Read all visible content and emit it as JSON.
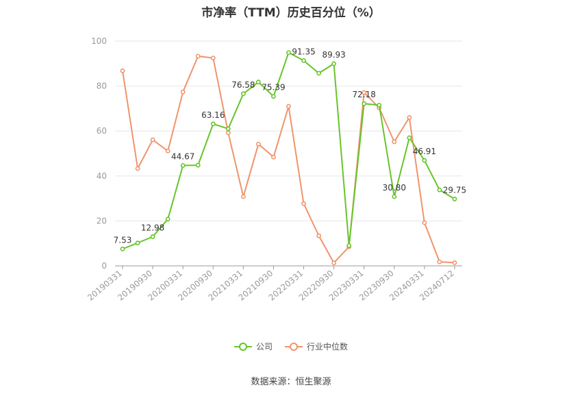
{
  "chart_data": {
    "type": "line",
    "title": "市净率（TTM）历史百分位（%）",
    "ylim": [
      0,
      100
    ],
    "yticks": [
      0,
      20,
      40,
      60,
      80,
      100
    ],
    "x": [
      "20190331",
      "20190630",
      "20190930",
      "20191231",
      "20200331",
      "20200630",
      "20200930",
      "20201231",
      "20210331",
      "20210630",
      "20210930",
      "20211231",
      "20220331",
      "20220630",
      "20220930",
      "20221231",
      "20230331",
      "20230630",
      "20230930",
      "20231231",
      "20240331",
      "20240630",
      "20240712"
    ],
    "xtick_labels": [
      "20190331",
      "20190930",
      "20200331",
      "20200930",
      "20210331",
      "20210930",
      "20220331",
      "20220930",
      "20230331",
      "20230930",
      "20240331",
      "20240712"
    ],
    "series": [
      {
        "name": "公司",
        "color": "#66c42a",
        "values": [
          7.53,
          10.2,
          12.98,
          20.8,
          44.67,
          44.8,
          63.16,
          61.0,
          76.58,
          81.8,
          75.39,
          94.9,
          91.35,
          85.7,
          89.93,
          9.0,
          72.18,
          71.5,
          30.8,
          57.0,
          46.91,
          33.8,
          29.75
        ],
        "labels": {
          "0": "7.53",
          "2": "12.98",
          "4": "44.67",
          "6": "63.16",
          "8": "76.58",
          "10": "75.39",
          "12": "91.35",
          "14": "89.93",
          "16": "72.18",
          "18": "30.80",
          "20": "46.91",
          "22": "29.75"
        }
      },
      {
        "name": "行业中位数",
        "color": "#f0936b",
        "values": [
          86.8,
          43.3,
          56.1,
          51.1,
          77.4,
          93.3,
          92.5,
          59.2,
          30.8,
          54.2,
          48.4,
          71.0,
          27.7,
          13.4,
          1.3,
          8.5,
          77.1,
          70.3,
          55.2,
          66.0,
          19.2,
          1.8,
          1.4
        ]
      }
    ]
  },
  "legend": [
    {
      "label": "公司",
      "color": "#66c42a"
    },
    {
      "label": "行业中位数",
      "color": "#f0936b"
    }
  ],
  "source": "数据来源：恒生聚源"
}
